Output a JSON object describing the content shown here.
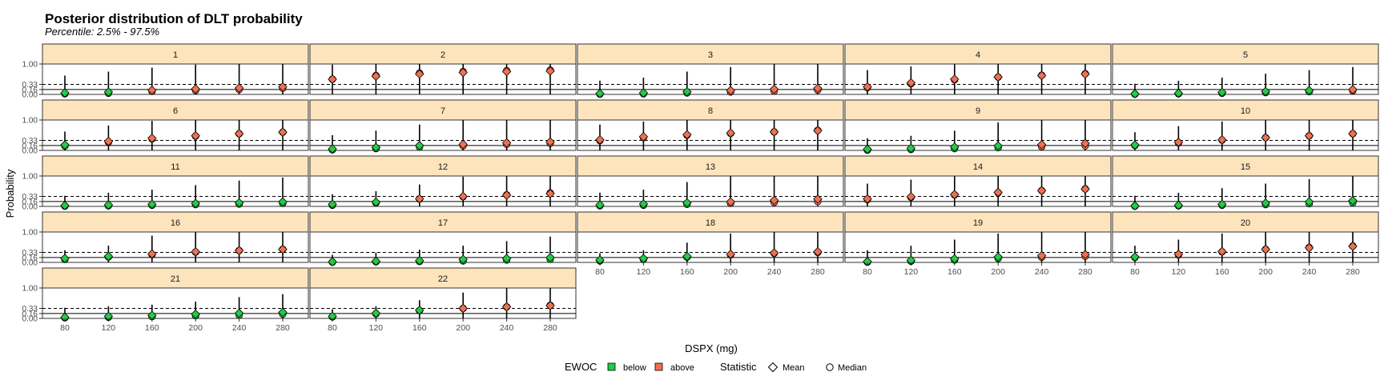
{
  "chart_data": {
    "type": "scatter",
    "title": "Posterior distribution of DLT probability",
    "subtitle": "Percentile: 2.5% - 97.5%",
    "xlabel": "DSPX (mg)",
    "ylabel": "Probability",
    "x": [
      80,
      120,
      160,
      200,
      240,
      280
    ],
    "x_tick_labels": [
      "80",
      "120",
      "160",
      "200",
      "240",
      "280"
    ],
    "ylim": [
      0,
      1
    ],
    "y_ticks": [
      0,
      0.16,
      0.33,
      1
    ],
    "y_tick_labels": [
      "0.00",
      "0.16",
      "0.33",
      "1.00"
    ],
    "reference_lines": [
      {
        "value": 0.33,
        "style": "dashed"
      },
      {
        "value": 0.16,
        "style": "solid"
      }
    ],
    "facet_layout": {
      "columns": 5,
      "rows": 5
    },
    "legend": {
      "position": "bottom",
      "groups": [
        {
          "title": "EWOC",
          "items": [
            {
              "label": "below",
              "color": "#22cc44",
              "shape": "square"
            },
            {
              "label": "above",
              "color": "#f07050",
              "shape": "square"
            }
          ]
        },
        {
          "title": "Statistic",
          "items": [
            {
              "label": "Mean",
              "shape": "diamond"
            },
            {
              "label": "Median",
              "shape": "circle"
            }
          ]
        }
      ]
    },
    "colors": {
      "below": "#22cc44",
      "above": "#f07050",
      "strip": "#fde4bd",
      "interval": "#000000"
    },
    "panels": [
      {
        "label": "1",
        "mean": [
          0.05,
          0.08,
          0.14,
          0.18,
          0.21,
          0.25
        ],
        "median": [
          0.02,
          0.04,
          0.1,
          0.13,
          0.16,
          0.2
        ],
        "upper": [
          0.62,
          0.75,
          0.88,
          0.98,
          1.0,
          1.0
        ],
        "ewoc": [
          "below",
          "below",
          "above",
          "above",
          "above",
          "above"
        ]
      },
      {
        "label": "2",
        "mean": [
          0.5,
          0.6,
          0.67,
          0.72,
          0.75,
          0.77
        ],
        "median": [
          0.5,
          0.62,
          0.7,
          0.75,
          0.78,
          0.8
        ],
        "upper": [
          0.98,
          1.0,
          1.0,
          1.0,
          1.0,
          1.0
        ],
        "ewoc": [
          "above",
          "above",
          "above",
          "above",
          "above",
          "above"
        ]
      },
      {
        "label": "3",
        "mean": [
          0.03,
          0.05,
          0.09,
          0.13,
          0.17,
          0.2
        ],
        "median": [
          0.01,
          0.02,
          0.05,
          0.08,
          0.11,
          0.14
        ],
        "upper": [
          0.45,
          0.55,
          0.75,
          0.9,
          1.0,
          1.0
        ],
        "ewoc": [
          "below",
          "below",
          "below",
          "above",
          "above",
          "above"
        ]
      },
      {
        "label": "4",
        "mean": [
          0.25,
          0.38,
          0.5,
          0.57,
          0.62,
          0.67
        ],
        "median": [
          0.22,
          0.35,
          0.48,
          0.57,
          0.63,
          0.68
        ],
        "upper": [
          0.8,
          0.92,
          1.0,
          1.0,
          1.0,
          1.0
        ],
        "ewoc": [
          "above",
          "above",
          "above",
          "above",
          "above",
          "above"
        ]
      },
      {
        "label": "5",
        "mean": [
          0.02,
          0.04,
          0.07,
          0.1,
          0.13,
          0.16
        ],
        "median": [
          0.01,
          0.02,
          0.04,
          0.06,
          0.09,
          0.12
        ],
        "upper": [
          0.35,
          0.45,
          0.55,
          0.68,
          0.8,
          0.9
        ],
        "ewoc": [
          "below",
          "below",
          "below",
          "below",
          "below",
          "above"
        ]
      },
      {
        "label": "6",
        "mean": [
          0.18,
          0.3,
          0.4,
          0.48,
          0.55,
          0.6
        ],
        "median": [
          0.14,
          0.27,
          0.38,
          0.47,
          0.55,
          0.6
        ],
        "upper": [
          0.62,
          0.82,
          0.97,
          1.0,
          1.0,
          1.0
        ],
        "ewoc": [
          "below",
          "above",
          "above",
          "above",
          "above",
          "above"
        ]
      },
      {
        "label": "7",
        "mean": [
          0.05,
          0.1,
          0.16,
          0.2,
          0.25,
          0.28
        ],
        "median": [
          0.02,
          0.06,
          0.11,
          0.15,
          0.2,
          0.23
        ],
        "upper": [
          0.5,
          0.65,
          0.85,
          1.0,
          1.0,
          1.0
        ],
        "ewoc": [
          "below",
          "below",
          "below",
          "above",
          "above",
          "above"
        ]
      },
      {
        "label": "8",
        "mean": [
          0.35,
          0.45,
          0.52,
          0.57,
          0.61,
          0.65
        ],
        "median": [
          0.32,
          0.42,
          0.5,
          0.56,
          0.61,
          0.66
        ],
        "upper": [
          0.85,
          0.95,
          1.0,
          1.0,
          1.0,
          1.0
        ],
        "ewoc": [
          "above",
          "above",
          "above",
          "above",
          "above",
          "above"
        ]
      },
      {
        "label": "9",
        "mean": [
          0.04,
          0.07,
          0.11,
          0.15,
          0.19,
          0.23
        ],
        "median": [
          0.01,
          0.03,
          0.06,
          0.09,
          0.12,
          0.15
        ],
        "upper": [
          0.4,
          0.48,
          0.65,
          0.92,
          1.0,
          1.0
        ],
        "ewoc": [
          "below",
          "below",
          "below",
          "below",
          "above",
          "above"
        ]
      },
      {
        "label": "10",
        "mean": [
          0.18,
          0.27,
          0.35,
          0.42,
          0.48,
          0.55
        ],
        "median": [
          0.16,
          0.25,
          0.34,
          0.42,
          0.48,
          0.55
        ],
        "upper": [
          0.6,
          0.8,
          0.95,
          1.0,
          1.0,
          1.0
        ],
        "ewoc": [
          "below",
          "above",
          "above",
          "above",
          "above",
          "above"
        ]
      },
      {
        "label": "11",
        "mean": [
          0.03,
          0.05,
          0.07,
          0.1,
          0.12,
          0.15
        ],
        "median": [
          0.01,
          0.02,
          0.04,
          0.06,
          0.08,
          0.1
        ],
        "upper": [
          0.35,
          0.45,
          0.55,
          0.7,
          0.85,
          0.95
        ],
        "ewoc": [
          "below",
          "below",
          "below",
          "below",
          "below",
          "below"
        ]
      },
      {
        "label": "12",
        "mean": [
          0.07,
          0.14,
          0.25,
          0.33,
          0.37,
          0.42
        ],
        "median": [
          0.04,
          0.12,
          0.24,
          0.32,
          0.38,
          0.44
        ],
        "upper": [
          0.4,
          0.5,
          0.72,
          0.98,
          1.0,
          1.0
        ],
        "ewoc": [
          "below",
          "below",
          "above",
          "above",
          "above",
          "above"
        ]
      },
      {
        "label": "13",
        "mean": [
          0.05,
          0.08,
          0.12,
          0.15,
          0.2,
          0.24
        ],
        "median": [
          0.02,
          0.04,
          0.07,
          0.1,
          0.13,
          0.16
        ],
        "upper": [
          0.45,
          0.55,
          0.8,
          1.0,
          1.0,
          1.0
        ],
        "ewoc": [
          "below",
          "below",
          "below",
          "above",
          "above",
          "above"
        ]
      },
      {
        "label": "14",
        "mean": [
          0.25,
          0.32,
          0.39,
          0.46,
          0.52,
          0.57
        ],
        "median": [
          0.22,
          0.3,
          0.38,
          0.45,
          0.52,
          0.58
        ],
        "upper": [
          0.75,
          0.88,
          1.0,
          1.0,
          1.0,
          1.0
        ],
        "ewoc": [
          "above",
          "above",
          "above",
          "above",
          "above",
          "above"
        ]
      },
      {
        "label": "15",
        "mean": [
          0.02,
          0.04,
          0.07,
          0.11,
          0.15,
          0.19
        ],
        "median": [
          0.01,
          0.02,
          0.04,
          0.06,
          0.09,
          0.12
        ],
        "upper": [
          0.35,
          0.45,
          0.6,
          0.75,
          0.9,
          1.0
        ],
        "ewoc": [
          "below",
          "below",
          "below",
          "below",
          "below",
          "below"
        ]
      },
      {
        "label": "16",
        "mean": [
          0.13,
          0.2,
          0.28,
          0.35,
          0.39,
          0.43
        ],
        "median": [
          0.1,
          0.18,
          0.26,
          0.34,
          0.39,
          0.43
        ],
        "upper": [
          0.4,
          0.55,
          0.88,
          1.0,
          1.0,
          1.0
        ],
        "ewoc": [
          "below",
          "below",
          "above",
          "above",
          "above",
          "above"
        ]
      },
      {
        "label": "17",
        "mean": [
          0.02,
          0.04,
          0.06,
          0.1,
          0.13,
          0.16
        ],
        "median": [
          0.01,
          0.02,
          0.03,
          0.05,
          0.08,
          0.1
        ],
        "upper": [
          0.25,
          0.32,
          0.42,
          0.55,
          0.7,
          0.85
        ],
        "ewoc": [
          "below",
          "below",
          "below",
          "below",
          "below",
          "below"
        ]
      },
      {
        "label": "18",
        "mean": [
          0.08,
          0.13,
          0.2,
          0.27,
          0.31,
          0.35
        ],
        "median": [
          0.05,
          0.1,
          0.17,
          0.25,
          0.3,
          0.33
        ],
        "upper": [
          0.3,
          0.4,
          0.65,
          0.95,
          1.0,
          1.0
        ],
        "ewoc": [
          "below",
          "below",
          "below",
          "above",
          "above",
          "above"
        ]
      },
      {
        "label": "19",
        "mean": [
          0.03,
          0.07,
          0.12,
          0.18,
          0.22,
          0.26
        ],
        "median": [
          0.01,
          0.04,
          0.08,
          0.13,
          0.17,
          0.2
        ],
        "upper": [
          0.4,
          0.55,
          0.75,
          0.95,
          1.0,
          1.0
        ],
        "ewoc": [
          "below",
          "below",
          "below",
          "below",
          "above",
          "above"
        ]
      },
      {
        "label": "20",
        "mean": [
          0.18,
          0.27,
          0.36,
          0.43,
          0.48,
          0.53
        ],
        "median": [
          0.16,
          0.25,
          0.35,
          0.43,
          0.49,
          0.54
        ],
        "upper": [
          0.55,
          0.75,
          0.95,
          1.0,
          1.0,
          1.0
        ],
        "ewoc": [
          "below",
          "above",
          "above",
          "above",
          "above",
          "above"
        ]
      },
      {
        "label": "21",
        "mean": [
          0.04,
          0.07,
          0.1,
          0.14,
          0.17,
          0.2
        ],
        "median": [
          0.02,
          0.04,
          0.06,
          0.09,
          0.11,
          0.14
        ],
        "upper": [
          0.35,
          0.4,
          0.45,
          0.55,
          0.7,
          0.8
        ],
        "ewoc": [
          "below",
          "below",
          "below",
          "below",
          "below",
          "below"
        ]
      },
      {
        "label": "22",
        "mean": [
          0.07,
          0.17,
          0.27,
          0.33,
          0.38,
          0.42
        ],
        "median": [
          0.05,
          0.15,
          0.26,
          0.33,
          0.38,
          0.43
        ],
        "upper": [
          0.3,
          0.4,
          0.6,
          0.85,
          1.0,
          1.0
        ],
        "ewoc": [
          "below",
          "below",
          "below",
          "above",
          "above",
          "above"
        ]
      }
    ]
  }
}
